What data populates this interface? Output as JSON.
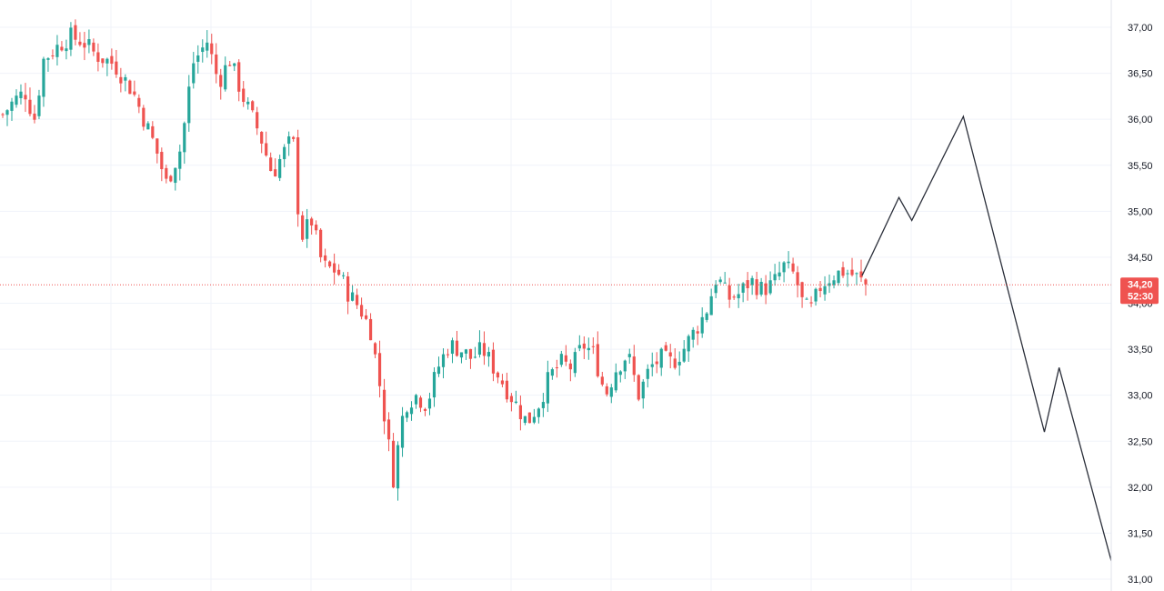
{
  "chart_data": {
    "type": "candlestick",
    "title": "",
    "xlabel": "",
    "ylabel": "",
    "ylim": [
      30.92,
      37.25
    ],
    "grid": true,
    "y_ticks": [
      "37,00",
      "36,50",
      "36,00",
      "35,50",
      "35,00",
      "34,50",
      "34,00",
      "33,50",
      "33,00",
      "32,50",
      "32,00",
      "31,50",
      "31,00"
    ],
    "y_tick_values": [
      37.0,
      36.5,
      36.0,
      35.5,
      35.0,
      34.5,
      34.0,
      33.5,
      33.0,
      32.5,
      32.0,
      31.5,
      31.0
    ],
    "current_price": {
      "value": 34.2,
      "label": "34,20",
      "countdown": "52:30"
    },
    "colors": {
      "up": "#26a69a",
      "down": "#ef5350",
      "grid": "#f0f3fa",
      "projection": "#2a2e39",
      "price_line": "#ef5350"
    },
    "candle_anchors": {
      "count": 191,
      "close_points": [
        [
          0,
          36.05
        ],
        [
          6,
          36.2
        ],
        [
          12,
          36.3
        ],
        [
          17,
          36.0
        ],
        [
          22,
          36.65
        ],
        [
          30,
          36.8
        ],
        [
          36,
          36.9
        ],
        [
          43,
          36.85
        ],
        [
          50,
          36.7
        ],
        [
          60,
          36.6
        ],
        [
          70,
          36.3
        ],
        [
          75,
          36.05
        ],
        [
          82,
          35.7
        ],
        [
          88,
          35.3
        ],
        [
          96,
          35.7
        ],
        [
          102,
          36.6
        ],
        [
          110,
          36.85
        ],
        [
          116,
          36.4
        ],
        [
          122,
          36.65
        ],
        [
          130,
          36.2
        ],
        [
          138,
          35.85
        ],
        [
          145,
          35.4
        ],
        [
          150,
          35.6
        ],
        [
          156,
          35.8
        ],
        [
          160,
          34.7
        ],
        [
          166,
          34.9
        ],
        [
          172,
          34.4
        ],
        [
          180,
          34.35
        ],
        [
          186,
          34.1
        ],
        [
          192,
          33.95
        ],
        [
          198,
          33.7
        ],
        [
          204,
          32.95
        ],
        [
          210,
          32.1
        ],
        [
          216,
          32.9
        ],
        [
          222,
          33.0
        ],
        [
          228,
          32.9
        ],
        [
          234,
          33.3
        ],
        [
          240,
          33.55
        ],
        [
          246,
          33.5
        ],
        [
          252,
          33.4
        ],
        [
          258,
          33.5
        ],
        [
          264,
          33.3
        ],
        [
          270,
          33.1
        ],
        [
          276,
          32.9
        ],
        [
          282,
          32.7
        ],
        [
          288,
          32.9
        ],
        [
          294,
          33.2
        ],
        [
          300,
          33.35
        ],
        [
          306,
          33.3
        ],
        [
          312,
          33.55
        ],
        [
          318,
          33.45
        ],
        [
          324,
          33.0
        ],
        [
          330,
          33.3
        ],
        [
          336,
          33.45
        ],
        [
          342,
          33.0
        ],
        [
          348,
          33.3
        ],
        [
          354,
          33.4
        ],
        [
          360,
          33.35
        ],
        [
          366,
          33.5
        ],
        [
          372,
          33.7
        ],
        [
          378,
          33.9
        ],
        [
          384,
          34.3
        ],
        [
          390,
          34.05
        ],
        [
          396,
          34.1
        ],
        [
          402,
          34.25
        ],
        [
          408,
          34.15
        ],
        [
          414,
          34.2
        ],
        [
          420,
          34.4
        ],
        [
          426,
          34.3
        ],
        [
          430,
          34.0
        ],
        [
          434,
          33.9
        ],
        [
          440,
          34.2
        ],
        [
          446,
          34.3
        ],
        [
          452,
          34.35
        ],
        [
          458,
          34.3
        ],
        [
          464,
          34.2
        ]
      ]
    },
    "projection": {
      "points": [
        [
          34.3,
          0
        ],
        [
          35.15,
          1
        ],
        [
          34.9,
          1.35
        ],
        [
          36.03,
          2.75
        ],
        [
          32.6,
          4.95
        ],
        [
          33.3,
          5.35
        ],
        [
          31.0,
          6.9
        ]
      ]
    }
  }
}
